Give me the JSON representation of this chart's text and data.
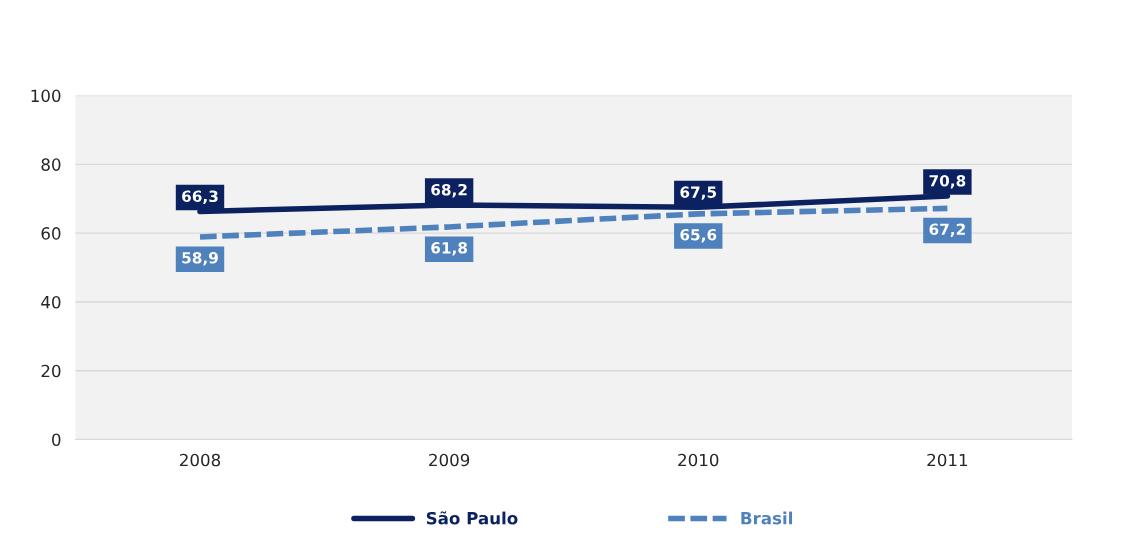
{
  "chart_data": {
    "type": "line",
    "categories": [
      "2008",
      "2009",
      "2010",
      "2011"
    ],
    "series": [
      {
        "name": "São Paulo",
        "color": "#0c2260",
        "values": [
          66.3,
          68.2,
          67.5,
          70.8
        ],
        "value_labels": [
          "66,3",
          "68,2",
          "67,5",
          "70,8"
        ],
        "line_style": "solid"
      },
      {
        "name": "Brasil",
        "color": "#4f81bd",
        "values": [
          58.9,
          61.8,
          65.6,
          67.2
        ],
        "value_labels": [
          "58,9",
          "61,8",
          "65,6",
          "67,2"
        ],
        "line_style": "dashed"
      }
    ],
    "ylim": [
      0,
      100
    ],
    "yticks": [
      0,
      20,
      40,
      60,
      80,
      100
    ],
    "grid": "y",
    "legend": "bottom"
  }
}
